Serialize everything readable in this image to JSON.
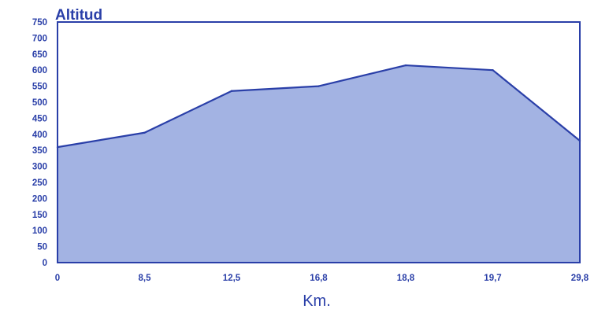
{
  "chart_data": {
    "type": "area",
    "ylabel": "Altitud",
    "xlabel": "Km.",
    "categories": [
      "0",
      "8,5",
      "12,5",
      "16,8",
      "18,8",
      "19,7",
      "29,8"
    ],
    "values": [
      360,
      405,
      535,
      550,
      615,
      600,
      380
    ],
    "y_ticks": [
      "0",
      "50",
      "100",
      "150",
      "200",
      "250",
      "300",
      "350",
      "400",
      "450",
      "500",
      "550",
      "600",
      "650",
      "700",
      "750"
    ],
    "ylim": [
      0,
      750
    ],
    "grid": false,
    "colors": {
      "fill": "#a3b3e3",
      "line": "#2a3fa8",
      "text": "#2a3fa8"
    }
  }
}
